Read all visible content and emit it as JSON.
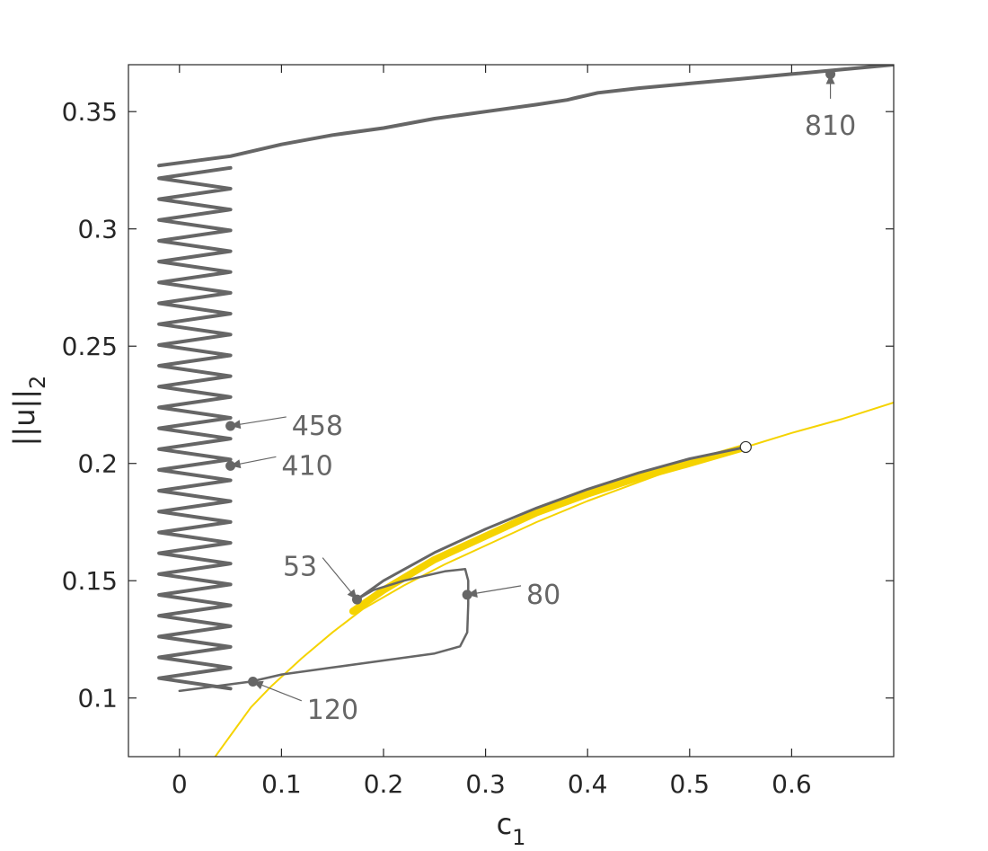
{
  "chart_data": {
    "type": "line",
    "title": "",
    "xlabel": "c",
    "xlabel_sub": "1",
    "ylabel": "||u||",
    "ylabel_sub": "2",
    "xlim": [
      -0.05,
      0.7
    ],
    "ylim": [
      0.075,
      0.37
    ],
    "xticks": [
      0,
      0.1,
      0.2,
      0.3,
      0.4,
      0.5,
      0.6
    ],
    "xtick_labels": [
      "0",
      "0.1",
      "0.2",
      "0.3",
      "0.4",
      "0.5",
      "0.6"
    ],
    "yticks": [
      0.1,
      0.15,
      0.2,
      0.25,
      0.3,
      0.35
    ],
    "ytick_labels": [
      "0.1",
      "0.15",
      "0.2",
      "0.25",
      "0.3",
      "0.35"
    ],
    "grid": false,
    "colors": {
      "branch": "#666666",
      "yellow": "#f5d300",
      "axis": "#262626"
    },
    "yellow_curve": {
      "x": [
        0.035,
        0.05,
        0.07,
        0.09,
        0.12,
        0.15,
        0.18,
        0.22,
        0.26,
        0.3,
        0.35,
        0.4,
        0.45,
        0.5,
        0.555,
        0.6,
        0.65,
        0.7
      ],
      "y": [
        0.075,
        0.084,
        0.096,
        0.105,
        0.117,
        0.128,
        0.138,
        0.148,
        0.157,
        0.165,
        0.175,
        0.184,
        0.192,
        0.2,
        0.207,
        0.213,
        0.219,
        0.226
      ]
    },
    "yellow_thick_segment": {
      "x": [
        0.17,
        0.2,
        0.25,
        0.3,
        0.35,
        0.4,
        0.45,
        0.5,
        0.555
      ],
      "y": [
        0.137,
        0.146,
        0.159,
        0.169,
        0.179,
        0.187,
        0.194,
        0.2,
        0.207
      ]
    },
    "upper_branch": {
      "x": [
        -0.02,
        0.05,
        0.1,
        0.15,
        0.2,
        0.25,
        0.3,
        0.35,
        0.38,
        0.39,
        0.4,
        0.41,
        0.45,
        0.5,
        0.55,
        0.6,
        0.65,
        0.7
      ],
      "y": [
        0.327,
        0.331,
        0.336,
        0.34,
        0.343,
        0.347,
        0.35,
        0.353,
        0.355,
        0.356,
        0.357,
        0.358,
        0.36,
        0.362,
        0.364,
        0.366,
        0.368,
        0.37
      ]
    },
    "zigzag": {
      "x_left": -0.02,
      "x_right": 0.05,
      "y_top": 0.326,
      "y_bottom": 0.104,
      "cycles": 25
    },
    "loop_branch": {
      "x": [
        0.0,
        0.07,
        0.1,
        0.15,
        0.2,
        0.25,
        0.275,
        0.282,
        0.283,
        0.283,
        0.28,
        0.26,
        0.22,
        0.19,
        0.174
      ],
      "y": [
        0.103,
        0.107,
        0.11,
        0.113,
        0.116,
        0.119,
        0.122,
        0.128,
        0.14,
        0.15,
        0.155,
        0.154,
        0.15,
        0.146,
        0.142
      ]
    },
    "grey_upper_arc": {
      "x": [
        0.174,
        0.2,
        0.25,
        0.3,
        0.35,
        0.4,
        0.45,
        0.5,
        0.555
      ],
      "y": [
        0.142,
        0.15,
        0.162,
        0.172,
        0.181,
        0.189,
        0.196,
        0.202,
        0.207
      ]
    },
    "hollow_marker": {
      "x": 0.555,
      "y": 0.207
    },
    "annotations": [
      {
        "label": "810",
        "x": 0.638,
        "y": 0.366,
        "tx": 0.638,
        "ty": 0.344,
        "align": "middle"
      },
      {
        "label": "458",
        "x": 0.05,
        "y": 0.216,
        "tx": 0.11,
        "ty": 0.216,
        "align": "start"
      },
      {
        "label": "410",
        "x": 0.05,
        "y": 0.199,
        "tx": 0.1,
        "ty": 0.199,
        "align": "start"
      },
      {
        "label": "53",
        "x": 0.174,
        "y": 0.142,
        "tx": 0.135,
        "ty": 0.156,
        "align": "end"
      },
      {
        "label": "80",
        "x": 0.282,
        "y": 0.144,
        "tx": 0.34,
        "ty": 0.144,
        "align": "start"
      },
      {
        "label": "120",
        "x": 0.072,
        "y": 0.107,
        "tx": 0.125,
        "ty": 0.095,
        "align": "start"
      }
    ]
  }
}
